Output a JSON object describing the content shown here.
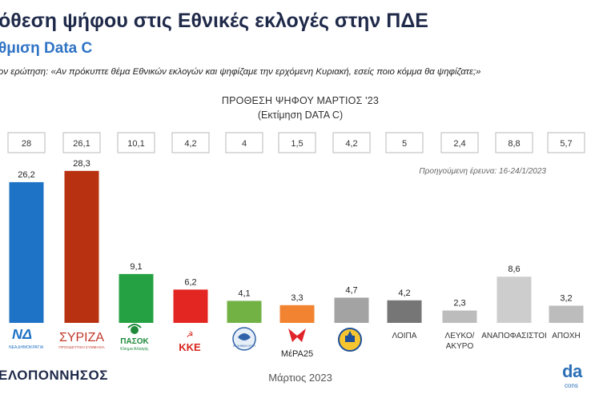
{
  "header": {
    "headline": "όθεση ψήφου στις Εθνικές εκλογές στην ΠΔΕ",
    "subhead": "θμιση Data C",
    "question": "ον ερώτηση: «Αν πρόκυπτε θέμα Εθνικών εκλογών και ψηφίζαμε την ερχόμενη Κυριακή, εσείς ποιο κόμμα θα ψηφίζατε;»"
  },
  "footer": {
    "region": "ΕΛΟΠΟΝΝΗΣΟΣ",
    "date": "Μάρτιος 2023",
    "logo": "da",
    "logo_sub": "cons"
  },
  "logos": {
    "nd": {
      "text": "ΝΔ",
      "sub": "ΝΕΑ ΔΗΜΟΚΡΑΤΙΑ"
    },
    "syriza": {
      "text": "ΣΥΡΙΖΑ",
      "sub": "ΠΡΟΟΔΕΥΤΙΚΗ ΣΥΜΜΑΧΙΑ"
    },
    "pasok": {
      "text": "ΠΑΣΟΚ",
      "sub": "Κίνημα Αλλαγής"
    },
    "kke": {
      "text": "ΚΚΕ"
    },
    "el": {
      "text": "ΕΛΛΗΝΙΚΗ ΛΥΣΗ"
    },
    "mera": {
      "text": "ΜέΡΑ25"
    },
    "niki": {
      "text": ""
    }
  },
  "colors": {
    "nd": "#1f73c6",
    "syriza": "#b83211",
    "pasok": "#25a143",
    "kke": "#e42622",
    "el": "#72b244",
    "mera": "#f28331",
    "niki": "#a3a3a3",
    "loipa": "#767676",
    "lefko": "#bcbcbc",
    "anapofasistoi": "#cdcdcd",
    "apoxi": "#bcbcbc"
  },
  "chart_data": {
    "type": "bar",
    "title": "ΠΡΟΘΕΣΗ ΨΗΦΟΥ  ΜΑΡΤΙΟΣ '23",
    "subtitle": "(Εκτίμηση DATA C)",
    "note": "Προηγούμενη έρευνα: 16-24/1/2023",
    "categories": [
      "",
      "",
      "",
      "",
      "",
      "",
      "",
      "ΛΟΙΠΑ",
      "ΛΕΥΚΟ/ ΑΚΥΡΟ",
      "ΑΝΑΠΟΦΑΣΙΣΤΟΙ",
      "ΑΠΟΧΗ"
    ],
    "values": [
      26.2,
      28.3,
      9.1,
      6.2,
      4.1,
      3.3,
      4.7,
      4.2,
      2.3,
      8.6,
      3.2
    ],
    "previous_values": [
      "28",
      "26,1",
      "10,1",
      "4,2",
      "4",
      "1,5",
      "4,2",
      "5",
      "2,4",
      "8,8",
      "5,7"
    ],
    "value_labels": [
      "26,2",
      "28,3",
      "9,1",
      "6,2",
      "4,1",
      "3,3",
      "4,7",
      "4,2",
      "2,3",
      "8,6",
      "3,2"
    ],
    "ylim": [
      0,
      30
    ],
    "grid": false,
    "legend": "none"
  }
}
